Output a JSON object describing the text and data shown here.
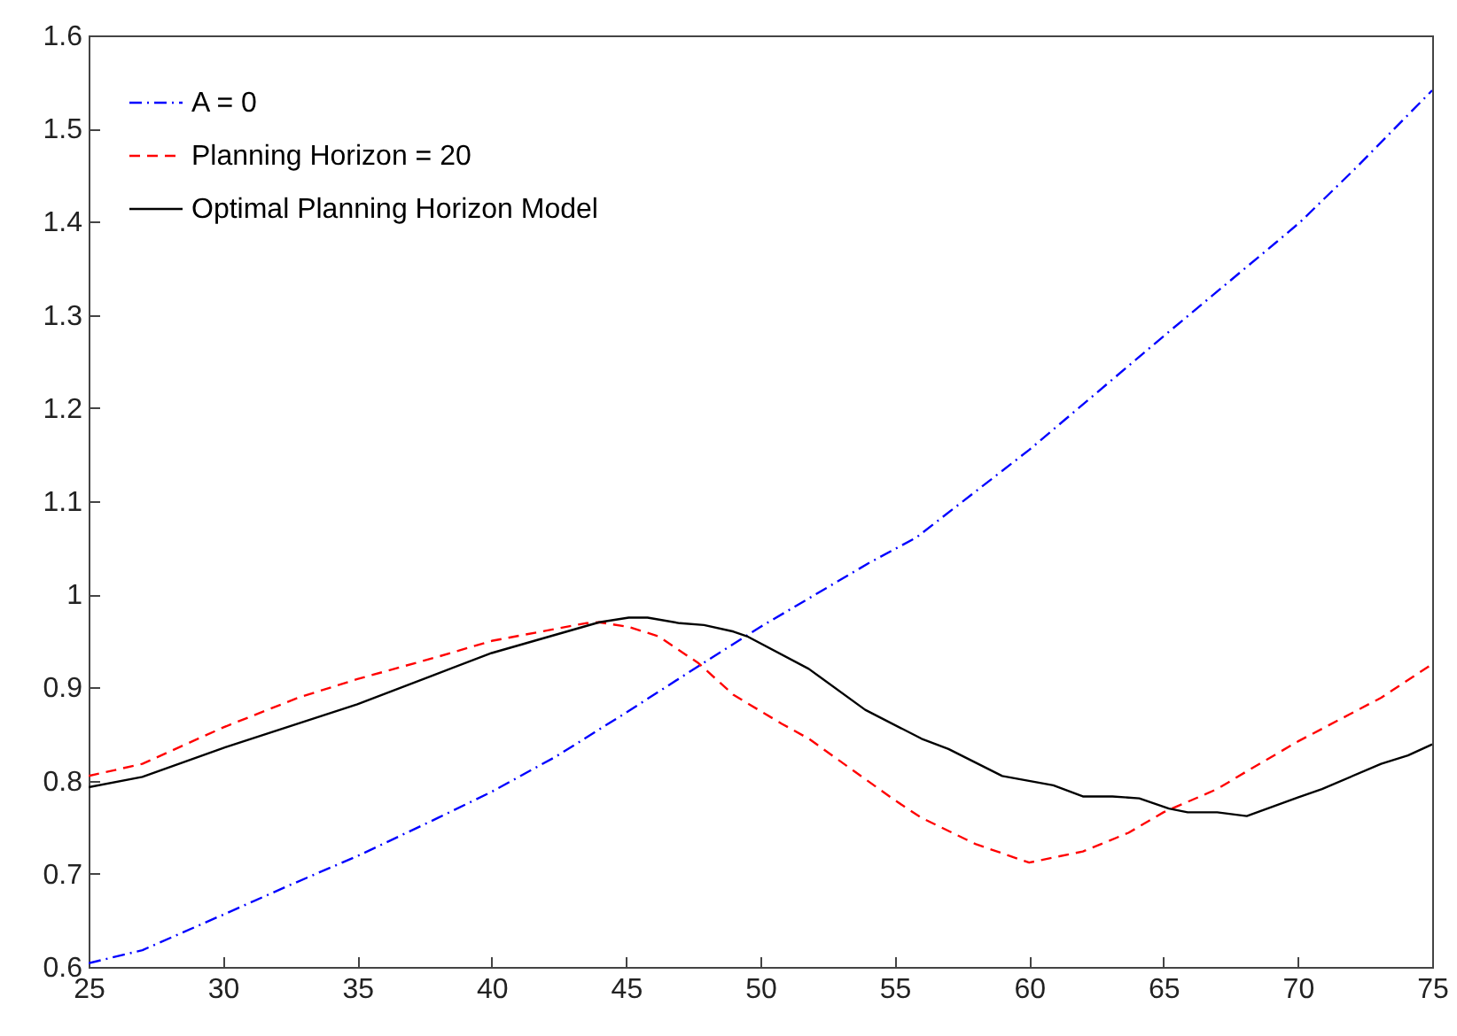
{
  "chart_data": {
    "type": "line",
    "xlim": [
      25,
      75
    ],
    "xticks": [
      25,
      30,
      35,
      40,
      45,
      50,
      55,
      60,
      65,
      70,
      75
    ],
    "ylim": [
      0.6,
      1.6
    ],
    "yticks": [
      0.6,
      0.7,
      0.8,
      0.9,
      1,
      1.1,
      1.2,
      1.3,
      1.4,
      1.5,
      1.6
    ],
    "grid": false,
    "legend": "top left",
    "series": [
      {
        "name": "A = 0",
        "color": "#0000ff",
        "line_style": "dashdot",
        "x": [
          25,
          27,
          30,
          32.5,
          35,
          38,
          40,
          42.4,
          45,
          47.7,
          50,
          54,
          55.8,
          60,
          65,
          69.2,
          70.1,
          72.1,
          75
        ],
        "values": [
          0.604,
          0.618,
          0.656,
          0.688,
          0.719,
          0.76,
          0.788,
          0.826,
          0.873,
          0.923,
          0.965,
          1.033,
          1.061,
          1.155,
          1.277,
          1.378,
          1.4,
          1.456,
          1.541
        ]
      },
      {
        "name": "Planning Horizon = 20",
        "color": "#ff0000",
        "line_style": "dashed",
        "x": [
          25,
          27,
          30,
          32.8,
          35,
          38,
          40,
          43.5,
          44,
          45.1,
          46.2,
          47.7,
          49,
          50.8,
          51.8,
          55,
          56,
          58,
          60,
          62,
          63.7,
          65,
          67,
          68.1,
          70,
          73.1,
          75
        ],
        "values": [
          0.805,
          0.818,
          0.857,
          0.889,
          0.909,
          0.933,
          0.95,
          0.969,
          0.97,
          0.965,
          0.955,
          0.926,
          0.892,
          0.861,
          0.845,
          0.779,
          0.76,
          0.732,
          0.712,
          0.724,
          0.744,
          0.766,
          0.791,
          0.81,
          0.842,
          0.889,
          0.925
        ]
      },
      {
        "name": "Optimal Planning Horizon Model",
        "color": "#000000",
        "line_style": "solid",
        "x": [
          25,
          27,
          30,
          35,
          40,
          44,
          45.1,
          45.8,
          47,
          47.9,
          49,
          49.5,
          51.8,
          53.9,
          56,
          57,
          59,
          60.9,
          62,
          63.1,
          64.1,
          65.2,
          65.9,
          67,
          68.1,
          70,
          70.9,
          73.1,
          74.1,
          75
        ],
        "values": [
          0.793,
          0.804,
          0.835,
          0.882,
          0.937,
          0.97,
          0.975,
          0.975,
          0.969,
          0.967,
          0.96,
          0.955,
          0.92,
          0.876,
          0.845,
          0.834,
          0.805,
          0.795,
          0.783,
          0.783,
          0.781,
          0.77,
          0.766,
          0.766,
          0.762,
          0.782,
          0.791,
          0.818,
          0.827,
          0.839
        ]
      }
    ]
  }
}
